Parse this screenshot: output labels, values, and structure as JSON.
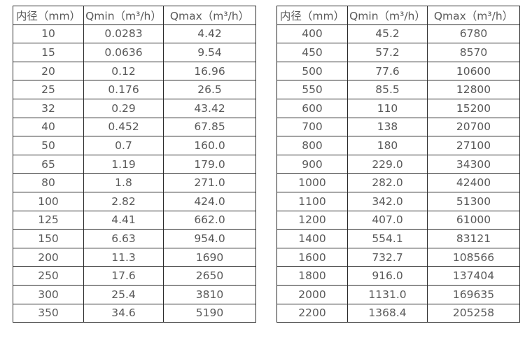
{
  "colors": {
    "background": "#ffffff",
    "border": "#2b2b2b",
    "text": "#595959"
  },
  "columns": [
    "内径（mm）",
    "Qmin（m³/h）",
    "Qmax（m³/h）"
  ],
  "left_table": {
    "rows": [
      [
        "10",
        "0.0283",
        "4.42"
      ],
      [
        "15",
        "0.0636",
        "9.54"
      ],
      [
        "20",
        "0.12",
        "16.96"
      ],
      [
        "25",
        "0.176",
        "26.5"
      ],
      [
        "32",
        "0.29",
        "43.42"
      ],
      [
        "40",
        "0.452",
        "67.85"
      ],
      [
        "50",
        "0.7",
        "160.0"
      ],
      [
        "65",
        "1.19",
        "179.0"
      ],
      [
        "80",
        "1.8",
        "271.0"
      ],
      [
        "100",
        "2.82",
        "424.0"
      ],
      [
        "125",
        "4.41",
        "662.0"
      ],
      [
        "150",
        "6.63",
        "954.0"
      ],
      [
        "200",
        "11.3",
        "1690"
      ],
      [
        "250",
        "17.6",
        "2650"
      ],
      [
        "300",
        "25.4",
        "3810"
      ],
      [
        "350",
        "34.6",
        "5190"
      ]
    ]
  },
  "right_table": {
    "rows": [
      [
        "400",
        "45.2",
        "6780"
      ],
      [
        "450",
        "57.2",
        "8570"
      ],
      [
        "500",
        "77.6",
        "10600"
      ],
      [
        "550",
        "85.5",
        "12800"
      ],
      [
        "600",
        "110",
        "15200"
      ],
      [
        "700",
        "138",
        "20700"
      ],
      [
        "800",
        "180",
        "27100"
      ],
      [
        "900",
        "229.0",
        "34300"
      ],
      [
        "1000",
        "282.0",
        "42400"
      ],
      [
        "1100",
        "342.0",
        "51300"
      ],
      [
        "1200",
        "407.0",
        "61000"
      ],
      [
        "1400",
        "554.1",
        "83121"
      ],
      [
        "1600",
        "732.7",
        "108566"
      ],
      [
        "1800",
        "916.0",
        "137404"
      ],
      [
        "2000",
        "1131.0",
        "169635"
      ],
      [
        "2200",
        "1368.4",
        "205258"
      ]
    ]
  }
}
